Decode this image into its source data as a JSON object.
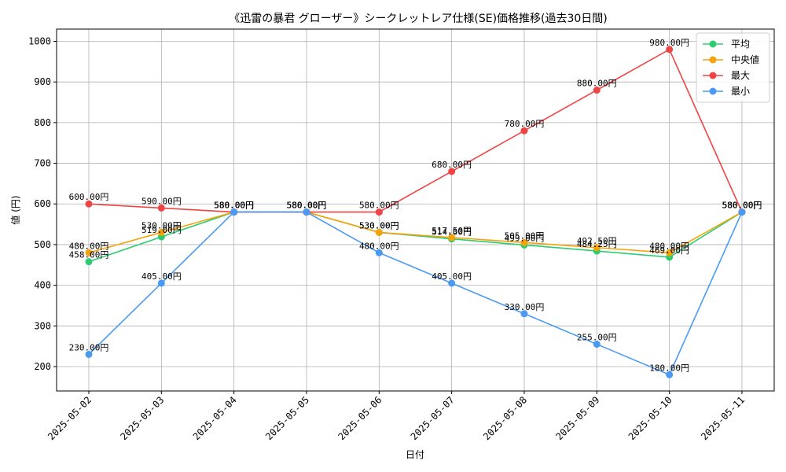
{
  "chart_data": {
    "type": "line",
    "title": "《迅雷の暴君 グローザー》シークレットレア仕様(SE)価格推移(過去30日間)",
    "xlabel": "日付",
    "ylabel": "値 (円)",
    "categories": [
      "2025-05-02",
      "2025-05-03",
      "2025-05-04",
      "2025-05-05",
      "2025-05-06",
      "2025-05-07",
      "2025-05-08",
      "2025-05-09",
      "2025-05-10",
      "2025-05-11"
    ],
    "ylim": [
      140,
      1030
    ],
    "yticks": [
      200,
      300,
      400,
      500,
      600,
      700,
      800,
      900,
      1000
    ],
    "grid": true,
    "legend_position": "top-right",
    "series": [
      {
        "name": "平均",
        "color": "#2ecc71",
        "values": [
          458.0,
          519.0,
          580.0,
          580.0,
          530.0,
          514.0,
          499.0,
          484.25,
          469.0,
          580.0
        ],
        "labels": [
          "458.00円",
          "519.00円",
          "580.00円",
          "580.00円",
          "530.00円",
          "514.00円",
          "499.00円",
          "484.25円",
          "469.00円",
          "580.00円"
        ]
      },
      {
        "name": "中央値",
        "color": "#f5a30a",
        "values": [
          480.0,
          530.0,
          580.0,
          580.0,
          530.0,
          517.5,
          505.0,
          492.5,
          480.0,
          580.0
        ],
        "labels": [
          "480.00円",
          "530.00円",
          "580.00円",
          "580.00円",
          "530.00円",
          "517.50円",
          "505.00円",
          "492.50円",
          "480.00円",
          "580.00円"
        ]
      },
      {
        "name": "最大",
        "color": "#ef4444",
        "values": [
          600.0,
          590.0,
          580.0,
          580.0,
          580.0,
          680.0,
          780.0,
          880.0,
          980.0,
          580.0
        ],
        "labels": [
          "600.00円",
          "590.00円",
          "580.00円",
          "580.00円",
          "580.00円",
          "680.00円",
          "780.00円",
          "880.00円",
          "980.00円",
          "580.00円"
        ]
      },
      {
        "name": "最小",
        "color": "#4a9af5",
        "values": [
          230.0,
          405.0,
          580.0,
          580.0,
          480.0,
          405.0,
          330.0,
          255.0,
          180.0,
          580.0
        ],
        "labels": [
          "230.00円",
          "405.00円",
          "580.00円",
          "580.00円",
          "480.00円",
          "405.00円",
          "330.00円",
          "255.00円",
          "180.00円",
          "580.00円"
        ]
      }
    ]
  }
}
